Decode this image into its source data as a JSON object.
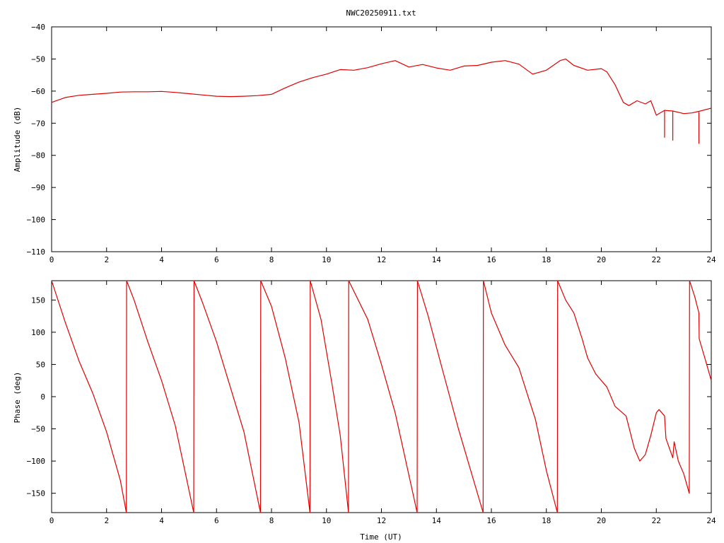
{
  "title": "NWC20250911.txt",
  "colors": {
    "series": "#e00000",
    "axes": "#000000",
    "background": "#ffffff"
  },
  "chart_data": [
    {
      "type": "line",
      "title": "NWC20250911.txt",
      "xlabel": "",
      "ylabel": "Amplitude (dB)",
      "xlim": [
        0,
        24
      ],
      "ylim": [
        -110,
        -40
      ],
      "xticks": [
        "0",
        "2",
        "4",
        "6",
        "8",
        "10",
        "12",
        "14",
        "16",
        "18",
        "20",
        "22",
        "24"
      ],
      "yticks": [
        "-40",
        "-50",
        "-60",
        "-70",
        "-80",
        "-90",
        "-100",
        "-110"
      ],
      "grid": false,
      "series": [
        {
          "x": [
            0,
            0.5,
            1,
            1.5,
            2,
            2.5,
            3,
            3.5,
            4,
            4.5,
            5,
            5.5,
            6,
            6.5,
            7,
            7.5,
            8,
            8.5,
            9,
            9.5,
            10,
            10.5,
            11,
            11.5,
            12,
            12.5,
            13,
            13.5,
            14,
            14.5,
            15,
            15.5,
            16,
            16.5,
            17,
            17.5,
            18,
            18.5,
            18.7,
            19,
            19.5,
            20,
            20.2,
            20.5,
            20.8,
            21,
            21.3,
            21.6,
            21.8,
            22,
            22.3,
            22.6,
            23,
            23.3,
            23.6,
            24
          ],
          "y": [
            -63.5,
            -62,
            -61.3,
            -61,
            -60.7,
            -60.3,
            -60.2,
            -60.2,
            -60.1,
            -60.4,
            -60.8,
            -61.2,
            -61.6,
            -61.7,
            -61.6,
            -61.4,
            -61,
            -59,
            -57.2,
            -55.8,
            -54.7,
            -53.3,
            -53.5,
            -52.7,
            -51.5,
            -50.5,
            -52.5,
            -51.7,
            -52.8,
            -53.5,
            -52.2,
            -52,
            -51,
            -50.5,
            -51.6,
            -54.7,
            -53.5,
            -50.5,
            -50,
            -52,
            -53.5,
            -53,
            -54,
            -58,
            -63.5,
            -64.5,
            -63,
            -64,
            -63,
            -67.5,
            -66,
            -66.2,
            -67,
            -66.8,
            -66.2,
            -65.3
          ]
        }
      ],
      "annotations": [
        {
          "x": 22.3,
          "y_top": -66,
          "y_bottom": -74.5
        },
        {
          "x": 22.6,
          "y_top": -66.3,
          "y_bottom": -75.4
        },
        {
          "x": 23.55,
          "y_top": -66.5,
          "y_bottom": -76.4
        }
      ]
    },
    {
      "type": "line",
      "title": "",
      "xlabel": "Time (UT)",
      "ylabel": "Phase (deg)",
      "xlim": [
        0,
        24
      ],
      "ylim": [
        -180,
        180
      ],
      "xticks": [
        "0",
        "2",
        "4",
        "6",
        "8",
        "10",
        "12",
        "14",
        "16",
        "18",
        "20",
        "22",
        "24"
      ],
      "yticks": [
        "150",
        "100",
        "50",
        "0",
        "-50",
        "-100",
        "-150"
      ],
      "grid": false,
      "series": [
        {
          "x": [
            0,
            0.5,
            1,
            1.5,
            2,
            2.5,
            2.72,
            2.73,
            3.0,
            3.5,
            4.0,
            4.5,
            5.17,
            5.18,
            5.5,
            6.0,
            6.5,
            7.0,
            7.6,
            7.61,
            8.0,
            8.5,
            9.0,
            9.4,
            9.41,
            9.8,
            10.2,
            10.5,
            10.8,
            10.81,
            11.5,
            12.0,
            12.5,
            13.3,
            13.31,
            13.7,
            14.2,
            14.8,
            15.7,
            15.71,
            16.0,
            16.5,
            17.0,
            17.3,
            17.6,
            17.8,
            18.0,
            18.4,
            18.41,
            18.7,
            19.0,
            19.3,
            19.5,
            19.8,
            20.2,
            20.5,
            20.9,
            21.2,
            21.4,
            21.6,
            21.8,
            22.0,
            22.1,
            22.3,
            22.35,
            22.6,
            22.65,
            22.8,
            23.0,
            23.2,
            23.21,
            23.4,
            23.55,
            23.56,
            23.8,
            24.0
          ],
          "y": [
            180,
            115,
            55,
            5,
            -55,
            -130,
            -180,
            180,
            150,
            85,
            25,
            -45,
            -180,
            180,
            145,
            85,
            15,
            -55,
            -180,
            180,
            140,
            60,
            -40,
            -180,
            180,
            120,
            20,
            -60,
            -180,
            180,
            120,
            50,
            -25,
            -180,
            180,
            125,
            45,
            -50,
            -180,
            180,
            130,
            80,
            45,
            5,
            -35,
            -75,
            -115,
            -180,
            180,
            150,
            130,
            90,
            60,
            35,
            15,
            -15,
            -30,
            -80,
            -100,
            -90,
            -60,
            -25,
            -20,
            -30,
            -65,
            -95,
            -70,
            -100,
            -120,
            -150,
            180,
            155,
            130,
            90,
            55,
            25
          ]
        }
      ]
    }
  ]
}
